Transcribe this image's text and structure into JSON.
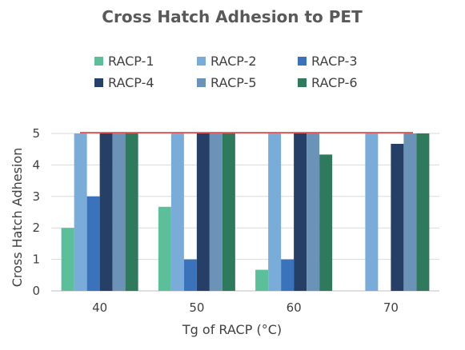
{
  "chart_data": {
    "type": "bar",
    "title": "Cross Hatch Adhesion to PET",
    "xlabel": "Tg of RACP (°C)",
    "ylabel": "Cross Hatch Adhesion",
    "categories": [
      "40",
      "50",
      "60",
      "70"
    ],
    "ylim": [
      0,
      5
    ],
    "yticks": [
      "0",
      "1",
      "2",
      "3",
      "4",
      "5"
    ],
    "grid": true,
    "legend_position": "top",
    "series": [
      {
        "name": "RACP-1",
        "color": "#5bbf9a",
        "values": [
          2.0,
          2.67,
          0.67,
          null
        ]
      },
      {
        "name": "RACP-2",
        "color": "#79acd9",
        "values": [
          5.0,
          5.0,
          5.0,
          5.0
        ]
      },
      {
        "name": "RACP-3",
        "color": "#3a72bb",
        "values": [
          3.0,
          1.0,
          1.0,
          null
        ]
      },
      {
        "name": "RACP-4",
        "color": "#253f66",
        "values": [
          5.0,
          5.0,
          5.0,
          4.67
        ]
      },
      {
        "name": "RACP-5",
        "color": "#6b93b8",
        "values": [
          5.0,
          5.0,
          5.0,
          5.0
        ]
      },
      {
        "name": "RACP-6",
        "color": "#2f7a5c",
        "values": [
          5.0,
          5.0,
          4.33,
          5.0
        ]
      }
    ],
    "reference_line": {
      "value": 5.0,
      "color": "#e03030"
    }
  }
}
